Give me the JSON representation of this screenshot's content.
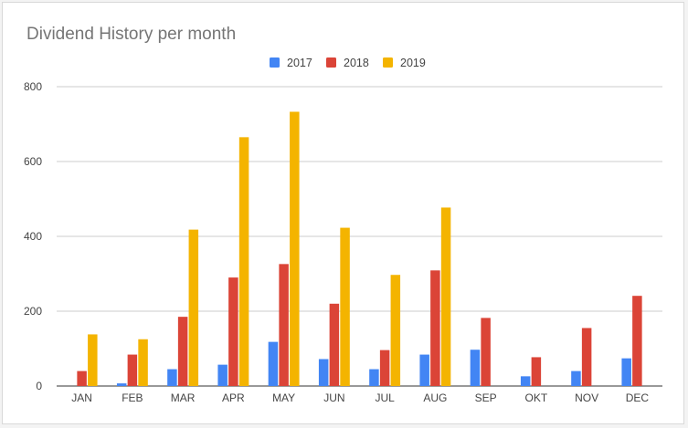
{
  "chart_data": {
    "type": "bar",
    "title": "Dividend History per month",
    "xlabel": "",
    "ylabel": "",
    "ylim": [
      0,
      800
    ],
    "yticks": [
      0,
      200,
      400,
      600,
      800
    ],
    "grid": true,
    "legend_position": "top-center",
    "categories": [
      "JAN",
      "FEB",
      "MAR",
      "APR",
      "MAY",
      "JUN",
      "JUL",
      "AUG",
      "SEP",
      "OKT",
      "NOV",
      "DEC"
    ],
    "series": [
      {
        "name": "2017",
        "color": "#4285f4",
        "values": [
          0,
          7,
          45,
          57,
          118,
          72,
          45,
          84,
          97,
          26,
          40,
          74
        ]
      },
      {
        "name": "2018",
        "color": "#db4437",
        "values": [
          40,
          84,
          185,
          290,
          326,
          220,
          96,
          309,
          182,
          77,
          155,
          241
        ]
      },
      {
        "name": "2019",
        "color": "#f4b400",
        "values": [
          138,
          125,
          418,
          665,
          733,
          423,
          297,
          477,
          0,
          0,
          0,
          0
        ]
      }
    ]
  }
}
